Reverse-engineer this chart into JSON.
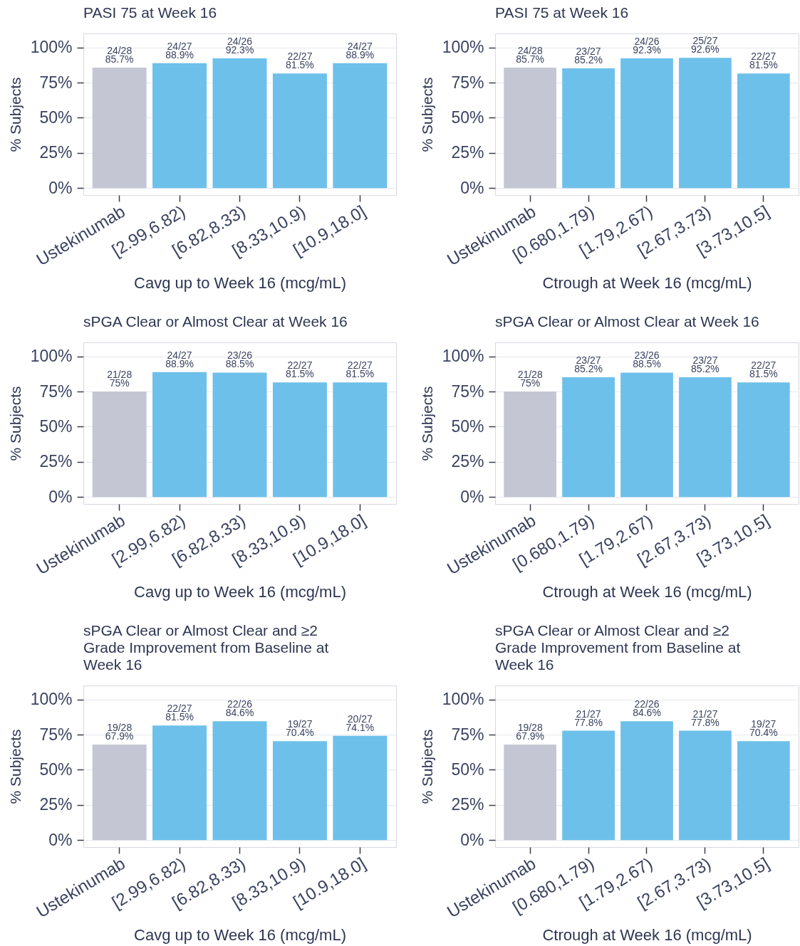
{
  "chart_data": [
    {
      "type": "bar",
      "title": "PASI 75 at Week 16",
      "xlabel": "Cavg up to Week 16 (mcg/mL)",
      "ylabel": "% Subjects",
      "categories": [
        "Ustekinumab",
        "[2.99,6.82)",
        "[6.82,8.33)",
        "[8.33,10.9)",
        "[10.9,18.0]"
      ],
      "values": [
        85.7,
        88.9,
        92.3,
        81.5,
        88.9
      ],
      "colors": [
        "#c4c7d3",
        "#6dc0e9",
        "#6dc0e9",
        "#6dc0e9",
        "#6dc0e9"
      ],
      "value_labels": [
        "24/28\n85.7%",
        "24/27\n88.9%",
        "24/26\n92.3%",
        "22/27\n81.5%",
        "24/27\n88.9%"
      ],
      "ylim": [
        -5,
        110
      ],
      "yticks": [
        {
          "value": 0,
          "label": "0%"
        },
        {
          "value": 25,
          "label": "25%"
        },
        {
          "value": 50,
          "label": "50%"
        },
        {
          "value": 75,
          "label": "75%"
        },
        {
          "value": 100,
          "label": "100%"
        }
      ],
      "grid": "y"
    },
    {
      "type": "bar",
      "title": "PASI 75 at Week 16",
      "xlabel": "Ctrough at Week 16 (mcg/mL)",
      "ylabel": "% Subjects",
      "categories": [
        "Ustekinumab",
        "[0.680,1.79)",
        "[1.79,2.67)",
        "[2.67,3.73)",
        "[3.73,10.5]"
      ],
      "values": [
        85.7,
        85.2,
        92.3,
        92.6,
        81.5
      ],
      "colors": [
        "#c4c7d3",
        "#6dc0e9",
        "#6dc0e9",
        "#6dc0e9",
        "#6dc0e9"
      ],
      "value_labels": [
        "24/28\n85.7%",
        "23/27\n85.2%",
        "24/26\n92.3%",
        "25/27\n92.6%",
        "22/27\n81.5%"
      ],
      "ylim": [
        -5,
        110
      ],
      "yticks": [
        {
          "value": 0,
          "label": "0%"
        },
        {
          "value": 25,
          "label": "25%"
        },
        {
          "value": 50,
          "label": "50%"
        },
        {
          "value": 75,
          "label": "75%"
        },
        {
          "value": 100,
          "label": "100%"
        }
      ],
      "grid": "y"
    },
    {
      "type": "bar",
      "title": "sPGA Clear or Almost Clear at Week 16",
      "xlabel": "Cavg up to Week 16 (mcg/mL)",
      "ylabel": "% Subjects",
      "categories": [
        "Ustekinumab",
        "[2.99,6.82)",
        "[6.82,8.33)",
        "[8.33,10.9)",
        "[10.9,18.0]"
      ],
      "values": [
        75,
        88.9,
        88.5,
        81.5,
        81.5
      ],
      "colors": [
        "#c4c7d3",
        "#6dc0e9",
        "#6dc0e9",
        "#6dc0e9",
        "#6dc0e9"
      ],
      "value_labels": [
        "21/28\n75%",
        "24/27\n88.9%",
        "23/26\n88.5%",
        "22/27\n81.5%",
        "22/27\n81.5%"
      ],
      "ylim": [
        -5,
        110
      ],
      "yticks": [
        {
          "value": 0,
          "label": "0%"
        },
        {
          "value": 25,
          "label": "25%"
        },
        {
          "value": 50,
          "label": "50%"
        },
        {
          "value": 75,
          "label": "75%"
        },
        {
          "value": 100,
          "label": "100%"
        }
      ],
      "grid": "y"
    },
    {
      "type": "bar",
      "title": "sPGA Clear or Almost Clear at Week 16",
      "xlabel": "Ctrough at Week 16 (mcg/mL)",
      "ylabel": "% Subjects",
      "categories": [
        "Ustekinumab",
        "[0.680,1.79)",
        "[1.79,2.67)",
        "[2.67,3.73)",
        "[3.73,10.5]"
      ],
      "values": [
        75,
        85.2,
        88.5,
        85.2,
        81.5
      ],
      "colors": [
        "#c4c7d3",
        "#6dc0e9",
        "#6dc0e9",
        "#6dc0e9",
        "#6dc0e9"
      ],
      "value_labels": [
        "21/28\n75%",
        "23/27\n85.2%",
        "23/26\n88.5%",
        "23/27\n85.2%",
        "22/27\n81.5%"
      ],
      "ylim": [
        -5,
        110
      ],
      "yticks": [
        {
          "value": 0,
          "label": "0%"
        },
        {
          "value": 25,
          "label": "25%"
        },
        {
          "value": 50,
          "label": "50%"
        },
        {
          "value": 75,
          "label": "75%"
        },
        {
          "value": 100,
          "label": "100%"
        }
      ],
      "grid": "y"
    },
    {
      "type": "bar",
      "title": "sPGA Clear or Almost Clear and ≥2\nGrade Improvement from Baseline at\nWeek 16",
      "xlabel": "Cavg up to Week 16 (mcg/mL)",
      "ylabel": "% Subjects",
      "categories": [
        "Ustekinumab",
        "[2.99,6.82)",
        "[6.82,8.33)",
        "[8.33,10.9)",
        "[10.9,18.0]"
      ],
      "values": [
        67.9,
        81.5,
        84.6,
        70.4,
        74.1
      ],
      "colors": [
        "#c4c7d3",
        "#6dc0e9",
        "#6dc0e9",
        "#6dc0e9",
        "#6dc0e9"
      ],
      "value_labels": [
        "19/28\n67.9%",
        "22/27\n81.5%",
        "22/26\n84.6%",
        "19/27\n70.4%",
        "20/27\n74.1%"
      ],
      "ylim": [
        -5,
        110
      ],
      "yticks": [
        {
          "value": 0,
          "label": "0%"
        },
        {
          "value": 25,
          "label": "25%"
        },
        {
          "value": 50,
          "label": "50%"
        },
        {
          "value": 75,
          "label": "75%"
        },
        {
          "value": 100,
          "label": "100%"
        }
      ],
      "grid": "y"
    },
    {
      "type": "bar",
      "title": "sPGA Clear or Almost Clear and ≥2\nGrade Improvement from Baseline at\nWeek 16",
      "xlabel": "Ctrough at Week 16 (mcg/mL)",
      "ylabel": "% Subjects",
      "categories": [
        "Ustekinumab",
        "[0.680,1.79)",
        "[1.79,2.67)",
        "[2.67,3.73)",
        "[3.73,10.5]"
      ],
      "values": [
        67.9,
        77.8,
        84.6,
        77.8,
        70.4
      ],
      "colors": [
        "#c4c7d3",
        "#6dc0e9",
        "#6dc0e9",
        "#6dc0e9",
        "#6dc0e9"
      ],
      "value_labels": [
        "19/28\n67.9%",
        "21/27\n77.8%",
        "22/26\n84.6%",
        "21/27\n77.8%",
        "19/27\n70.4%"
      ],
      "ylim": [
        -5,
        110
      ],
      "yticks": [
        {
          "value": 0,
          "label": "0%"
        },
        {
          "value": 25,
          "label": "25%"
        },
        {
          "value": 50,
          "label": "50%"
        },
        {
          "value": 75,
          "label": "75%"
        },
        {
          "value": 100,
          "label": "100%"
        }
      ],
      "grid": "y"
    }
  ]
}
